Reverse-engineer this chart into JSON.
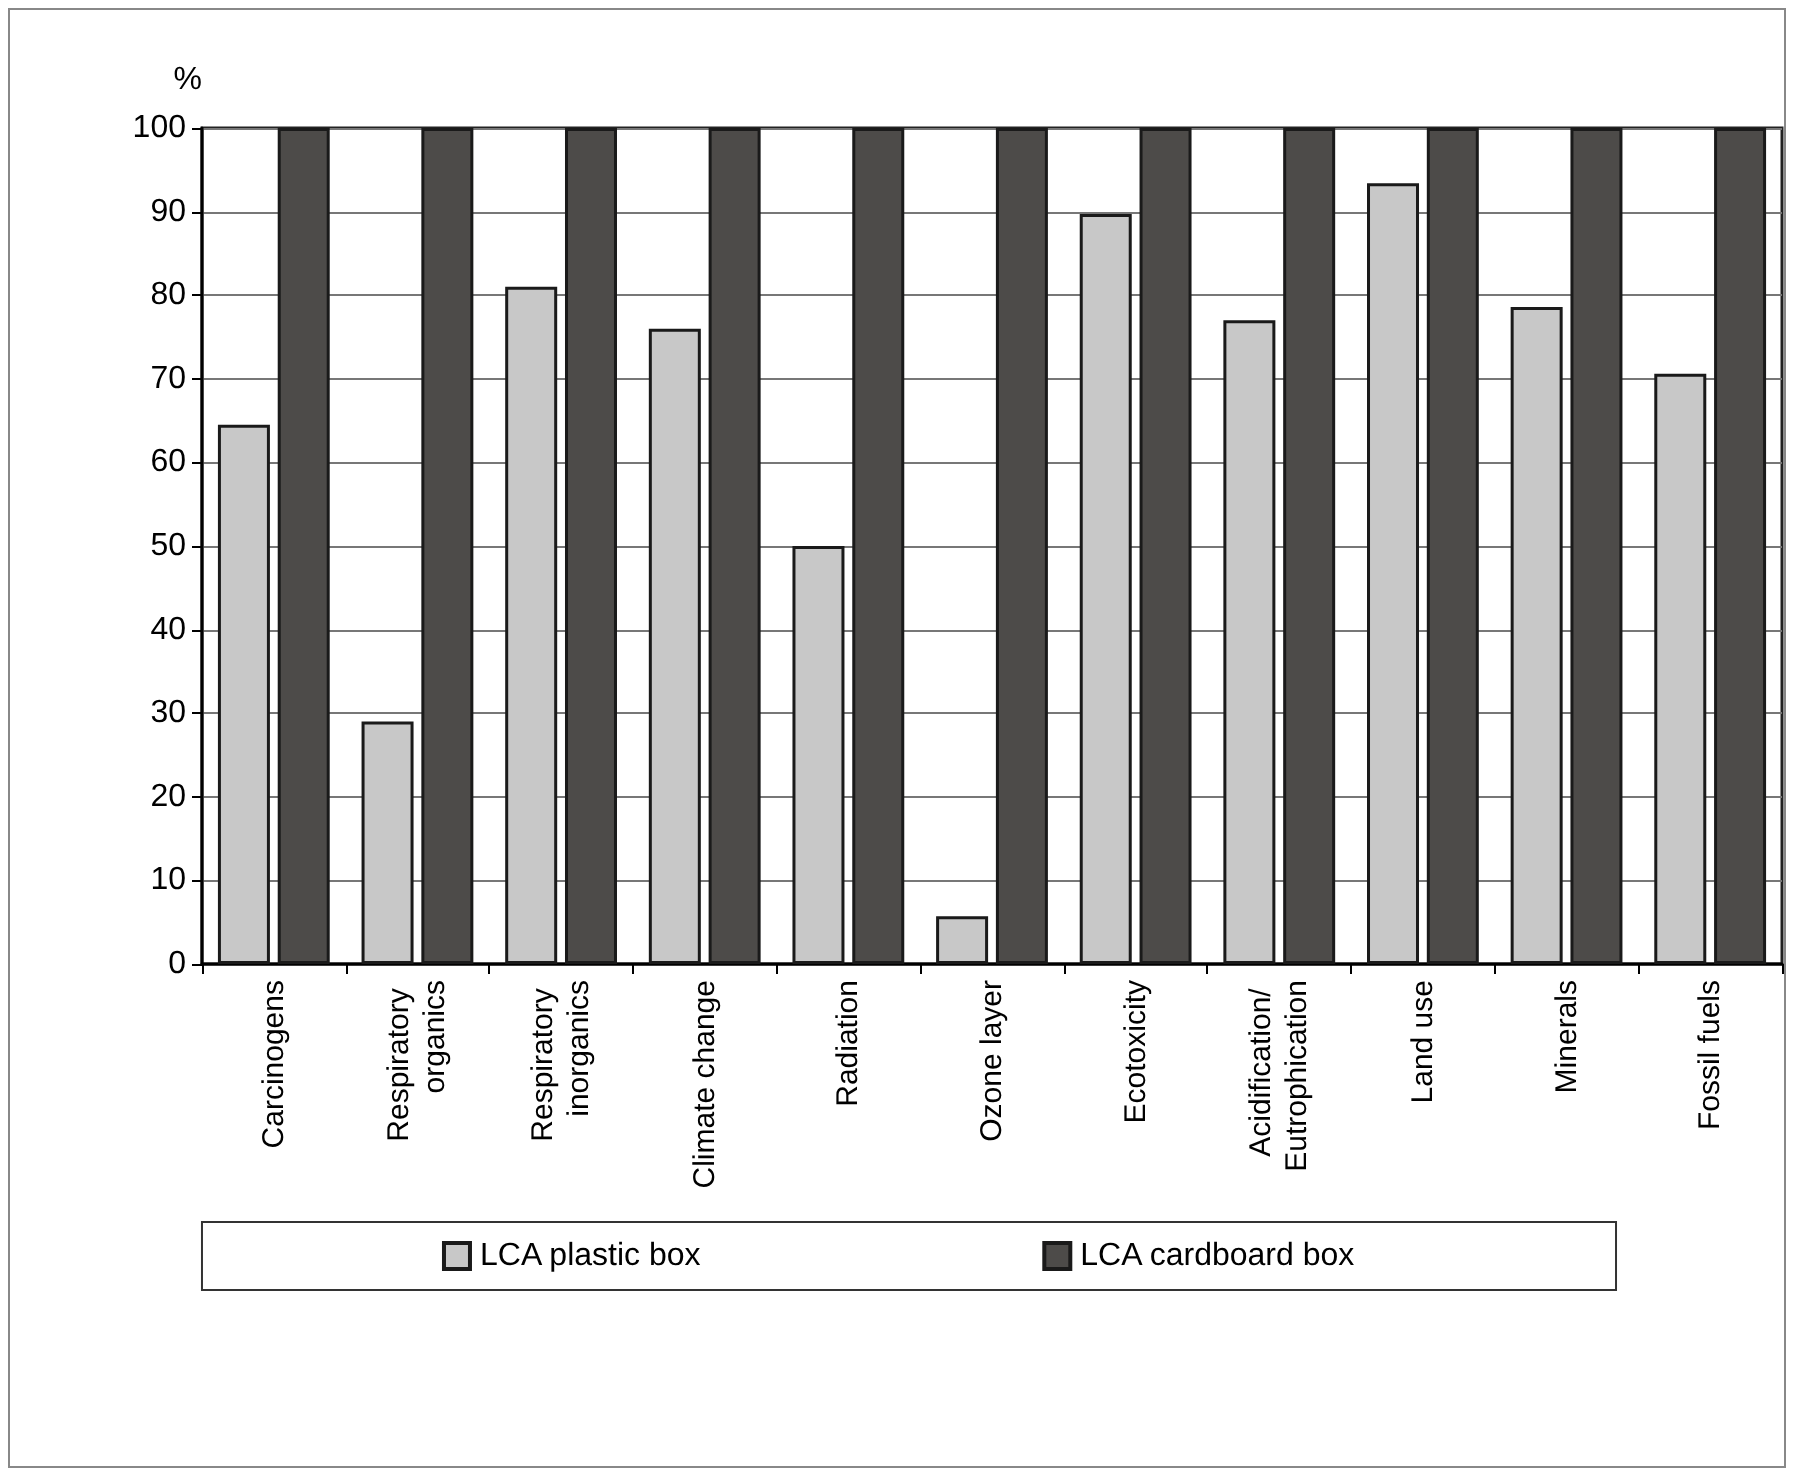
{
  "chart_data": {
    "type": "bar",
    "ylabel": "%",
    "categories": [
      "Carcinogens",
      "Respiratory organics",
      "Respiratory inorganics",
      "Climate change",
      "Radiation",
      "Ozone layer",
      "Ecotoxicity",
      "Acidification/ Eutrophication",
      "Land use",
      "Minerals",
      "Fossil fuels"
    ],
    "series": [
      {
        "name": "LCA plastic box",
        "color": "#c8c8c8",
        "values": [
          64.5,
          29,
          81,
          76,
          50,
          5.7,
          89.7,
          77,
          93.4,
          78.6,
          70.6
        ]
      },
      {
        "name": "LCA cardboard box",
        "color": "#4d4b49",
        "values": [
          100,
          100,
          100,
          100,
          100,
          100,
          100,
          100,
          100,
          100,
          100
        ]
      }
    ],
    "ylim": [
      0,
      100
    ],
    "yticks": [
      0,
      10,
      20,
      30,
      40,
      50,
      60,
      70,
      80,
      90,
      100
    ],
    "grid": "y",
    "legend": "bottom"
  }
}
